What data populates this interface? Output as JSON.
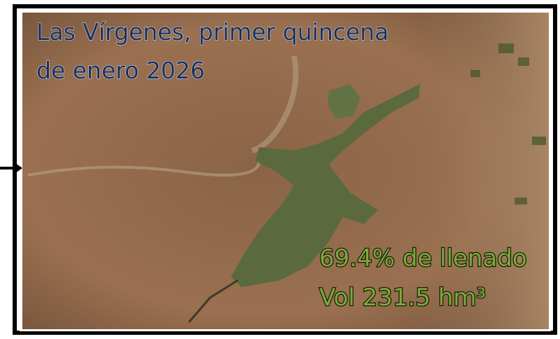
{
  "title": {
    "lines": [
      "Las Vírgenes, primer quincena",
      "de enero 2026"
    ]
  },
  "stats": {
    "lines": [
      "69.4% de llenado",
      "Vol 231.5 hm³"
    ]
  }
}
